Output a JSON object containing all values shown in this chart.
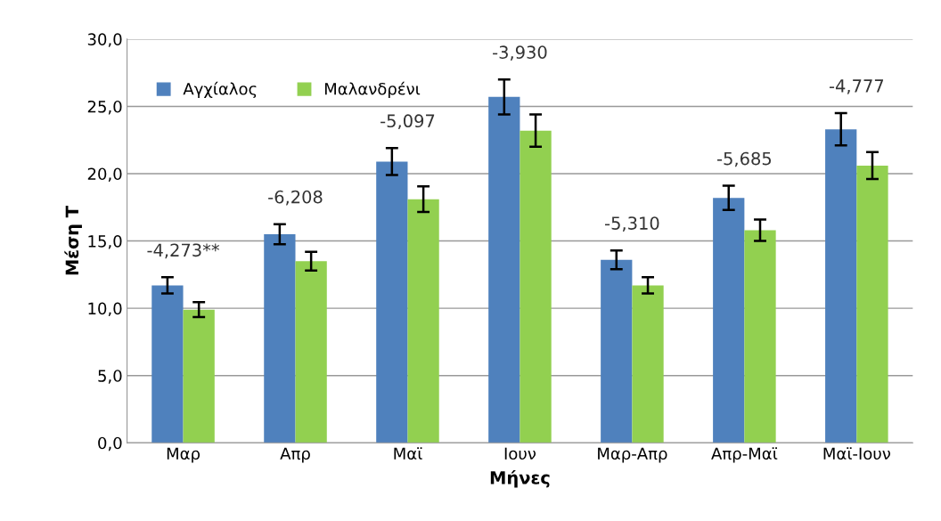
{
  "chart_data": {
    "type": "bar",
    "xlabel": "Μήνες",
    "ylabel": "Μέση Τ",
    "categories": [
      "Μαρ",
      "Απρ",
      "Μαϊ",
      "Ιουν",
      "Μαρ-Απρ",
      "Απρ-Μαϊ",
      "Μαϊ-Ιουν"
    ],
    "series": [
      {
        "name": "Αγχίαλος",
        "color": "#4f81bd",
        "values": [
          11.7,
          15.5,
          20.9,
          25.7,
          13.6,
          18.2,
          23.3
        ],
        "errors": [
          0.6,
          0.75,
          1.0,
          1.3,
          0.7,
          0.9,
          1.2
        ]
      },
      {
        "name": "Μαλανδρένι",
        "color": "#92d050",
        "values": [
          9.9,
          13.5,
          18.1,
          23.2,
          11.7,
          15.8,
          20.6
        ],
        "errors": [
          0.55,
          0.7,
          0.95,
          1.2,
          0.6,
          0.8,
          1.0
        ]
      }
    ],
    "ylim": [
      0,
      30
    ],
    "yticks": [
      {
        "value": 0,
        "label": "0,0"
      },
      {
        "value": 5,
        "label": "5,0"
      },
      {
        "value": 10,
        "label": "10,0"
      },
      {
        "value": 15,
        "label": "15,0"
      },
      {
        "value": 20,
        "label": "20,0"
      },
      {
        "value": 25,
        "label": "25,0"
      },
      {
        "value": 30,
        "label": "30,0"
      }
    ],
    "grid": "y",
    "legend": "top left",
    "annotations": [
      "-4,273**",
      "-6,208",
      "-5,097",
      "-3,930",
      "-5,310",
      "-5,685",
      "-4,777"
    ]
  }
}
